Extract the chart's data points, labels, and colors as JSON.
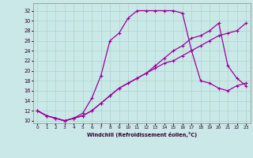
{
  "xlabel": "Windchill (Refroidissement éolien,°C)",
  "background_color": "#cbe8e8",
  "grid_color": "#aad4cc",
  "line_color": "#990099",
  "xlim_min": -0.5,
  "xlim_max": 23.5,
  "ylim_min": 9.5,
  "ylim_max": 33.5,
  "xticks": [
    0,
    1,
    2,
    3,
    4,
    5,
    6,
    7,
    8,
    9,
    10,
    11,
    12,
    13,
    14,
    15,
    16,
    17,
    18,
    19,
    20,
    21,
    22,
    23
  ],
  "yticks": [
    10,
    12,
    14,
    16,
    18,
    20,
    22,
    24,
    26,
    28,
    30,
    32
  ],
  "line1_x": [
    0,
    1,
    2,
    3,
    4,
    5,
    6,
    7,
    8,
    9,
    10,
    11,
    12,
    13,
    14,
    15,
    16,
    17,
    18,
    19,
    20,
    21,
    22,
    23
  ],
  "line1_y": [
    12.0,
    11.0,
    10.5,
    10.0,
    10.5,
    11.0,
    12.0,
    13.5,
    15.0,
    16.5,
    17.5,
    18.5,
    19.5,
    20.5,
    21.5,
    22.0,
    23.0,
    24.0,
    25.0,
    26.0,
    27.0,
    27.5,
    28.0,
    29.5
  ],
  "line2_x": [
    0,
    1,
    2,
    3,
    4,
    5,
    6,
    7,
    8,
    9,
    10,
    11,
    12,
    13,
    14,
    15,
    16,
    17,
    18,
    19,
    20,
    21,
    22,
    23
  ],
  "line2_y": [
    12.0,
    11.0,
    10.5,
    10.0,
    10.5,
    11.5,
    14.5,
    19.0,
    26.0,
    27.5,
    30.5,
    32.0,
    32.0,
    32.0,
    32.0,
    32.0,
    31.5,
    24.0,
    18.0,
    17.5,
    16.5,
    16.0,
    17.0,
    17.5
  ],
  "line3_x": [
    0,
    1,
    2,
    3,
    4,
    5,
    6,
    7,
    8,
    9,
    10,
    11,
    12,
    13,
    14,
    15,
    16,
    17,
    18,
    19,
    20,
    21,
    22,
    23
  ],
  "line3_y": [
    12.0,
    11.0,
    10.5,
    10.0,
    10.5,
    11.0,
    12.0,
    13.5,
    15.0,
    16.5,
    17.5,
    18.5,
    19.5,
    21.0,
    22.5,
    24.0,
    25.0,
    26.5,
    27.0,
    28.0,
    29.5,
    21.0,
    18.5,
    17.0
  ]
}
